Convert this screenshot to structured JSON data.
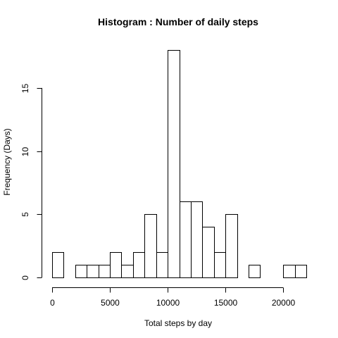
{
  "chart_data": {
    "type": "bar",
    "title": "Histogram : Number of daily steps",
    "xlabel": "Total steps by day",
    "ylabel": "Frequency (Days)",
    "bin_width": 1000,
    "bin_starts": [
      0,
      1000,
      2000,
      3000,
      4000,
      5000,
      6000,
      7000,
      8000,
      9000,
      10000,
      11000,
      12000,
      13000,
      14000,
      15000,
      16000,
      17000,
      18000,
      19000,
      20000,
      21000
    ],
    "values": [
      2,
      0,
      1,
      1,
      1,
      2,
      1,
      2,
      5,
      2,
      18,
      6,
      6,
      4,
      2,
      5,
      0,
      1,
      0,
      0,
      1,
      1
    ],
    "xlim": [
      0,
      22000
    ],
    "ylim": [
      0,
      18
    ],
    "x_ticks": [
      0,
      5000,
      10000,
      15000,
      20000
    ],
    "y_ticks": [
      0,
      5,
      10,
      15
    ],
    "grid": false,
    "colors": {
      "bar_fill": "#ffffff",
      "bar_stroke": "#000000"
    }
  }
}
